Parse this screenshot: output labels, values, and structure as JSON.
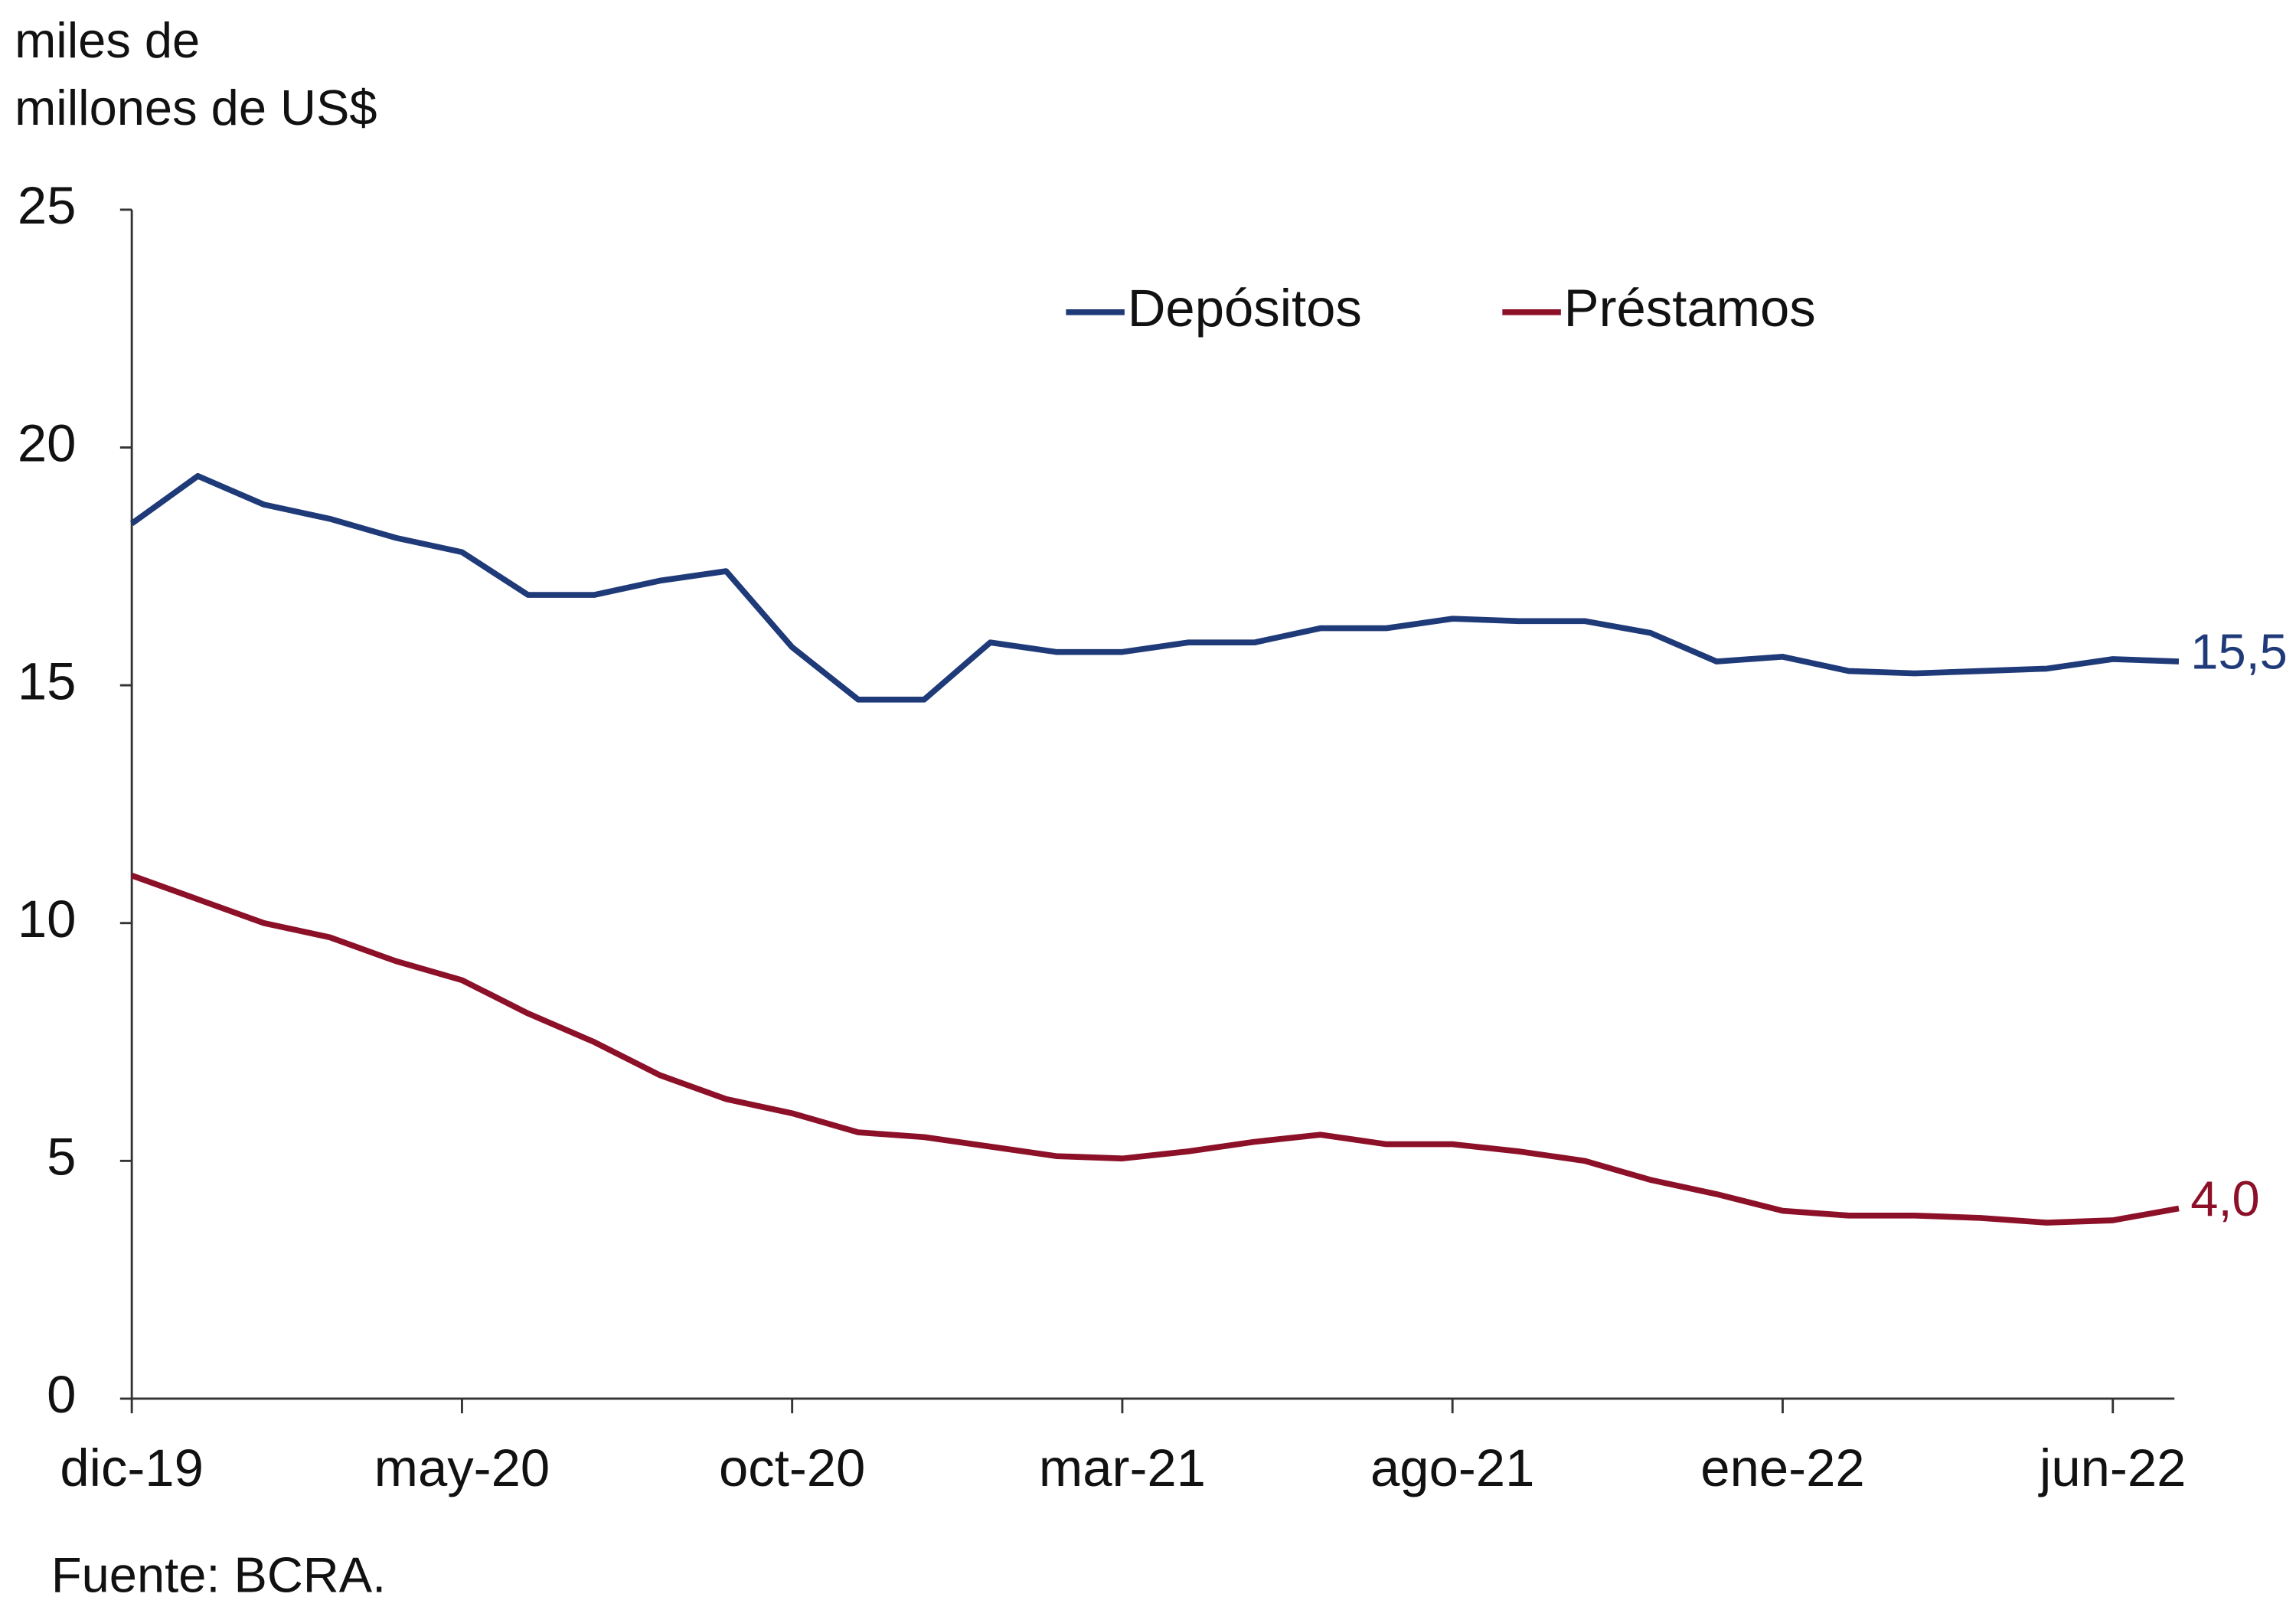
{
  "chart_data": {
    "type": "line",
    "y_label": [
      "miles de",
      "millones de US$"
    ],
    "source": "Fuente: BCRA.",
    "categories": [
      "dic-19",
      null,
      null,
      null,
      null,
      "may-20",
      null,
      null,
      null,
      null,
      "oct-20",
      null,
      null,
      null,
      null,
      "mar-21",
      null,
      null,
      null,
      null,
      "ago-21",
      null,
      null,
      null,
      null,
      "ene-22",
      null,
      null,
      null,
      null,
      "jun-22",
      null
    ],
    "series": [
      {
        "name": "Depósitos",
        "color": "#1f3a78",
        "values": [
          18.4,
          19.4,
          18.8,
          18.5,
          18.1,
          17.8,
          16.9,
          16.9,
          17.2,
          17.4,
          15.8,
          14.7,
          14.7,
          15.9,
          15.7,
          15.7,
          15.9,
          15.9,
          16.2,
          16.2,
          16.4,
          16.35,
          16.35,
          16.1,
          15.5,
          15.6,
          15.3,
          15.25,
          15.3,
          15.35,
          15.55,
          15.5
        ],
        "value_labels": [
          null,
          null,
          null,
          null,
          null,
          null,
          null,
          null,
          null,
          null,
          null,
          null,
          null,
          null,
          null,
          null,
          null,
          null,
          null,
          null,
          null,
          null,
          null,
          null,
          null,
          null,
          null,
          null,
          null,
          null,
          null,
          "15,5"
        ]
      },
      {
        "name": "Préstamos",
        "color": "#8c1028",
        "values": [
          11.0,
          10.5,
          10.0,
          9.7,
          9.2,
          8.8,
          8.1,
          7.5,
          6.8,
          6.3,
          6.0,
          5.6,
          5.5,
          5.3,
          5.1,
          5.05,
          5.2,
          5.4,
          5.55,
          5.35,
          5.35,
          5.2,
          5.0,
          4.6,
          4.3,
          3.95,
          3.85,
          3.85,
          3.8,
          3.7,
          3.75,
          4.0
        ],
        "value_labels": [
          null,
          null,
          null,
          null,
          null,
          null,
          null,
          null,
          null,
          null,
          null,
          null,
          null,
          null,
          null,
          null,
          null,
          null,
          null,
          null,
          null,
          null,
          null,
          null,
          null,
          null,
          null,
          null,
          null,
          null,
          null,
          "4,0"
        ]
      }
    ],
    "ylim": [
      0,
      25
    ],
    "yticks": [
      0,
      5,
      10,
      15,
      20,
      25
    ],
    "grid": false,
    "legend": "top-center"
  }
}
